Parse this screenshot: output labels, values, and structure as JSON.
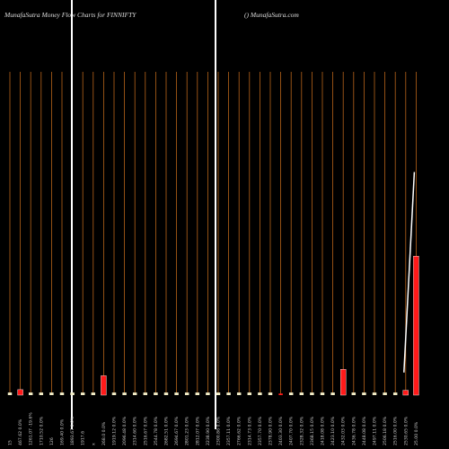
{
  "chart_data": {
    "type": "money-flow",
    "title": "MunafaSutra  Money Flow  Charts for FINNIFTY",
    "subtitle": "() MunafaSutra.com",
    "categories": [
      "15",
      "467.62 0.0%",
      "1261.07 -19.6%",
      "1710.52 0.0%",
      "126",
      "169.40 0.0%",
      "1893.67 0.0%",
      "1917.6",
      "x",
      "268.0 0.0%",
      "1919.12 0.0%",
      "2096.48 0.0%",
      "2314.60 0.0%",
      "2516.67 0.0%",
      "2544.78 0.0%",
      "2682.51 0.0%",
      "2694.67 0.0%",
      "2801.23 0.0%",
      "2812.07 0.0%",
      "2238.90 0.0%",
      "2300.86 0.0%",
      "2357.11 0.0%",
      "2766.62 0.0%",
      "2314.73 0.0%",
      "2357.70 0.0%",
      "2378.90 0.0%",
      "2403.30 0.0%",
      "2407.70 0.0%",
      "2328.32 0.0%",
      "2368.15 0.0%",
      "2418.08 0.0%",
      "2423.10 0.0%",
      "2432.03 0.0%",
      "2436.78 0.0%",
      "2448.08 0.0%",
      "2497.11 0.0%",
      "2506.18 0.0%",
      "2516.00 0.0%",
      "2530.65 0.0%",
      "25.00 0.0%"
    ],
    "values": [
      0.8,
      1.7,
      0.8,
      0.8,
      0.8,
      0.8,
      0.8,
      0.8,
      0.8,
      6,
      0.8,
      0.8,
      0.8,
      0.8,
      0.8,
      0.8,
      0.8,
      0.8,
      0.8,
      0.8,
      0.8,
      0.8,
      0.8,
      0.8,
      0.8,
      0.8,
      0.5,
      0.8,
      0.8,
      0.8,
      0.8,
      0.8,
      8,
      0.8,
      0.8,
      0.8,
      0.8,
      0.8,
      1.5,
      43
    ],
    "colors": [
      "#f3eec8",
      "#ff1a1a",
      "#f3eec8",
      "#f3eec8",
      "#f3eec8",
      "#f3eec8",
      "#f3eec8",
      "#f3eec8",
      "#f3eec8",
      "#ff1a1a",
      "#f3eec8",
      "#f3eec8",
      "#f3eec8",
      "#f3eec8",
      "#f3eec8",
      "#f3eec8",
      "#f3eec8",
      "#f3eec8",
      "#f3eec8",
      "#f3eec8",
      "#f3eec8",
      "#f3eec8",
      "#f3eec8",
      "#f3eec8",
      "#f3eec8",
      "#f3eec8",
      "#ff1a1a",
      "#f3eec8",
      "#f3eec8",
      "#f3eec8",
      "#f3eec8",
      "#f3eec8",
      "#ff1a1a",
      "#f3eec8",
      "#f3eec8",
      "#f3eec8",
      "#f3eec8",
      "#f3eec8",
      "#ff1a1a",
      "#ff1a1a"
    ],
    "line": {
      "color": "#ffffff",
      "values": [
        null,
        null,
        null,
        null,
        null,
        null,
        null,
        null,
        null,
        null,
        null,
        null,
        null,
        null,
        null,
        null,
        null,
        null,
        null,
        null,
        null,
        null,
        null,
        null,
        null,
        null,
        null,
        null,
        null,
        null,
        null,
        null,
        null,
        null,
        null,
        null,
        null,
        null,
        7,
        69
      ]
    },
    "grid_color": "#b8641a",
    "ylim": [
      0,
      100
    ]
  }
}
